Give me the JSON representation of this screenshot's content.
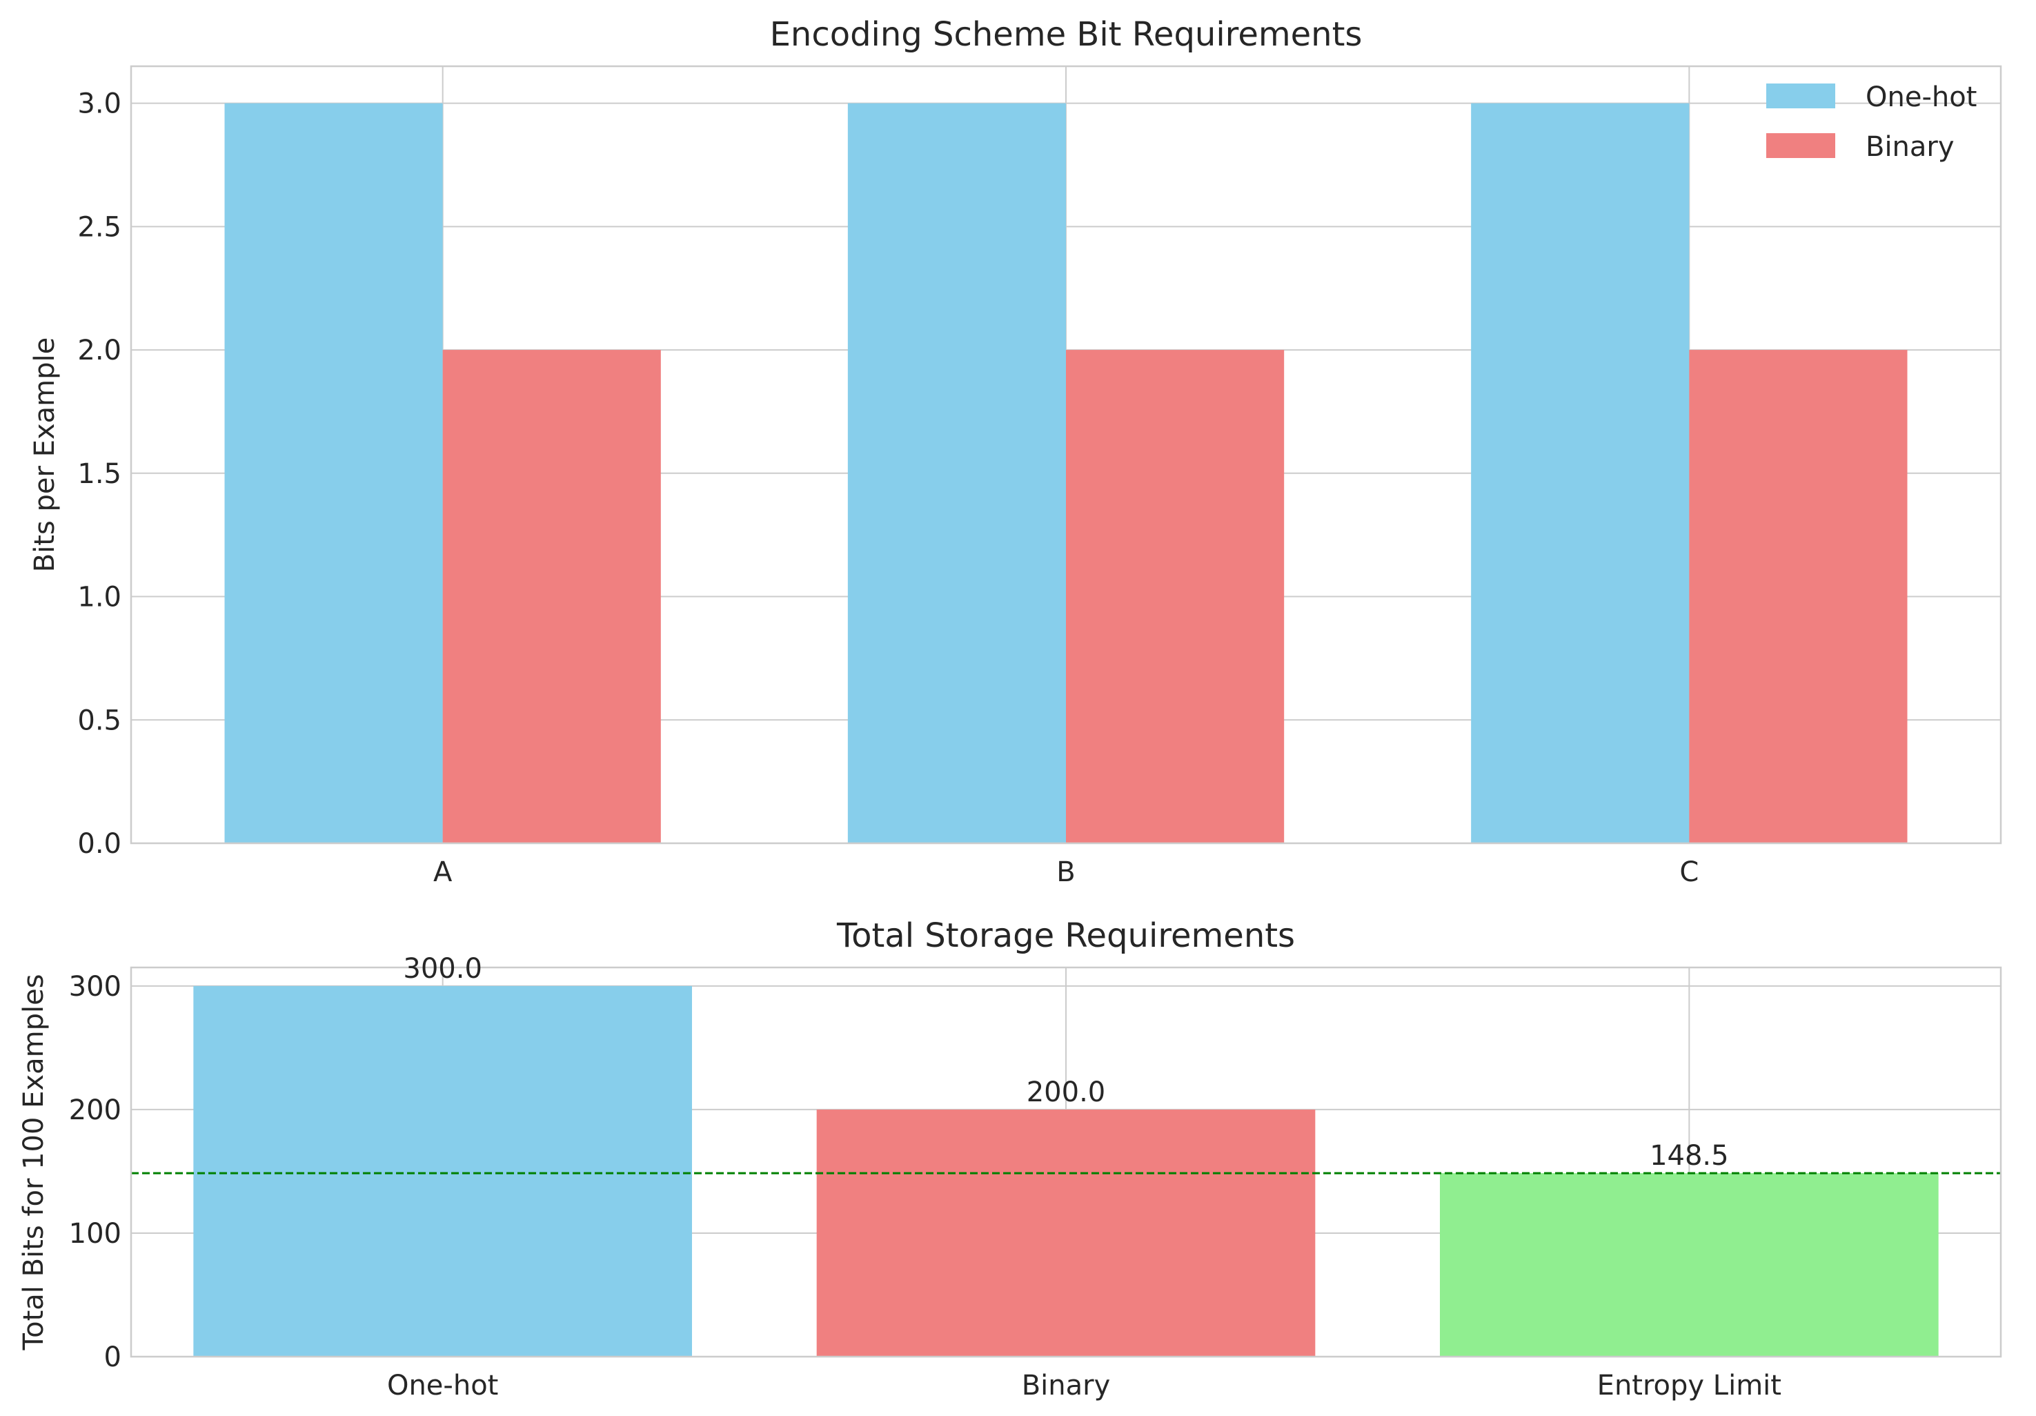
{
  "chart_data": [
    {
      "type": "bar",
      "title": "Encoding Scheme Bit Requirements",
      "xlabel": "",
      "ylabel": "Bits per Example",
      "categories": [
        "A",
        "B",
        "C"
      ],
      "series": [
        {
          "name": "One-hot",
          "values": [
            3,
            3,
            3
          ],
          "color": "#87CEEB"
        },
        {
          "name": "Binary",
          "values": [
            2,
            2,
            2
          ],
          "color": "#F08080"
        }
      ],
      "ylim": [
        0,
        3.15
      ],
      "yticks": [
        "0.0",
        "0.5",
        "1.0",
        "1.5",
        "2.0",
        "2.5",
        "3.0"
      ],
      "grid": true,
      "legend": "top-right"
    },
    {
      "type": "bar",
      "title": "Total Storage Requirements",
      "xlabel": "",
      "ylabel": "Total Bits for 100 Examples",
      "categories": [
        "One-hot",
        "Binary",
        "Entropy Limit"
      ],
      "values": [
        300,
        200,
        148.5
      ],
      "data_labels": [
        "300.0",
        "200.0",
        "148.5"
      ],
      "colors": [
        "#87CEEB",
        "#F08080",
        "#90EE90"
      ],
      "reference_line": {
        "value": 148.5,
        "color": "#008000",
        "style": "dashed"
      },
      "ylim": [
        0,
        315
      ],
      "yticks": [
        "0",
        "100",
        "200",
        "300"
      ],
      "grid": true
    }
  ]
}
